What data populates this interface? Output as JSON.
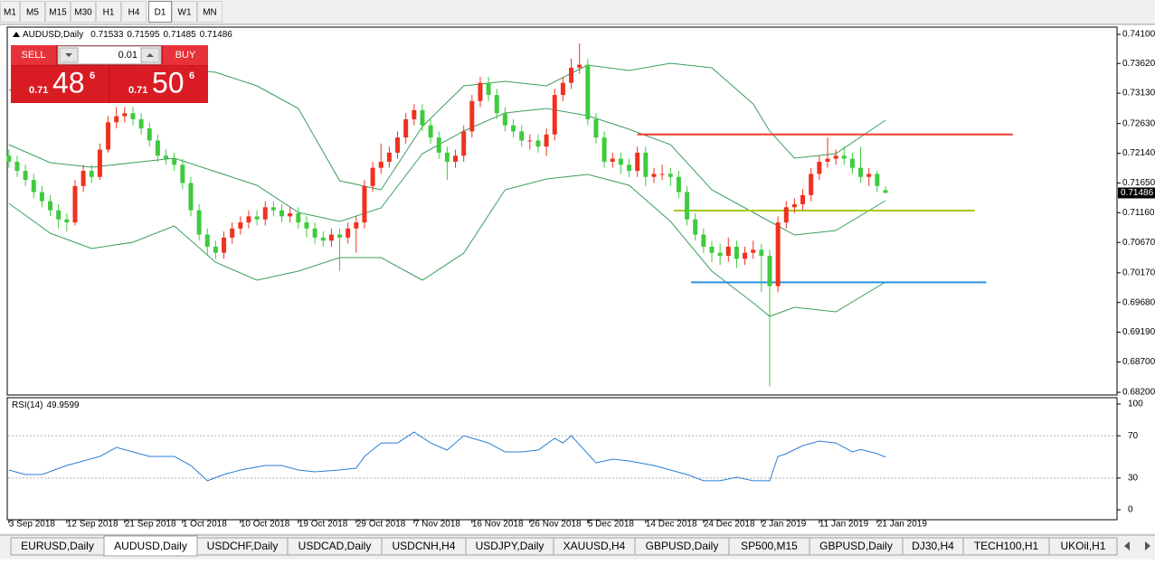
{
  "toolbar": {
    "timeframes": [
      "M1",
      "M5",
      "M15",
      "M30",
      "H1",
      "H4",
      "D1",
      "W1",
      "MN"
    ],
    "selected": 6
  },
  "trade_panel": {
    "sell": "SELL",
    "buy": "BUY",
    "lot": "0.01",
    "bid": {
      "big_figure": "0.71",
      "pips": "48",
      "fraction": "6"
    },
    "ask": {
      "big_figure": "0.71",
      "pips": "50",
      "fraction": "6"
    }
  },
  "chart_data": [
    {
      "type": "candlestick",
      "title": "AUDUSD,Daily",
      "up_color": "#f0311f",
      "down_color": "#3ecb3e",
      "xlim": [
        -0.2,
        134
      ],
      "ylim": [
        0.68156,
        0.74219
      ],
      "xticks": [
        {
          "value": 0,
          "label": "3 Sep 2018"
        },
        {
          "value": 7,
          "label": "12 Sep 2018"
        },
        {
          "value": 14,
          "label": "21 Sep 2018"
        },
        {
          "value": 21,
          "label": "1 Oct 2018"
        },
        {
          "value": 28,
          "label": "10 Oct 2018"
        },
        {
          "value": 35,
          "label": "19 Oct 2018"
        },
        {
          "value": 42,
          "label": "29 Oct 2018"
        },
        {
          "value": 49,
          "label": "7 Nov 2018"
        },
        {
          "value": 56,
          "label": "16 Nov 2018"
        },
        {
          "value": 63,
          "label": "26 Nov 2018"
        },
        {
          "value": 70,
          "label": "5 Dec 2018"
        },
        {
          "value": 77,
          "label": "14 Dec 2018"
        },
        {
          "value": 84,
          "label": "24 Dec 2018"
        },
        {
          "value": 91,
          "label": "2 Jan 2019"
        },
        {
          "value": 98,
          "label": "11 Jan 2019"
        },
        {
          "value": 105,
          "label": "21 Jan 2019"
        }
      ],
      "yticks": [
        {
          "value": 0.741,
          "label": "0.74100"
        },
        {
          "value": 0.7362,
          "label": "0.73620"
        },
        {
          "value": 0.7313,
          "label": "0.73130"
        },
        {
          "value": 0.7263,
          "label": "0.72630"
        },
        {
          "value": 0.7214,
          "label": "0.72140"
        },
        {
          "value": 0.7165,
          "label": "0.71650"
        },
        {
          "value": 0.7116,
          "label": "0.71160"
        },
        {
          "value": 0.7067,
          "label": "0.70670"
        },
        {
          "value": 0.7017,
          "label": "0.70170"
        },
        {
          "value": 0.6968,
          "label": "0.69680"
        },
        {
          "value": 0.6919,
          "label": "0.69190"
        },
        {
          "value": 0.687,
          "label": "0.68700"
        },
        {
          "value": 0.682,
          "label": "0.68200"
        }
      ],
      "open": [
        0.721,
        0.72,
        0.7185,
        0.717,
        0.715,
        0.7135,
        0.712,
        0.7105,
        0.71,
        0.716,
        0.7185,
        0.7175,
        0.722,
        0.7265,
        0.7275,
        0.728,
        0.727,
        0.7255,
        0.7235,
        0.721,
        0.7205,
        0.7195,
        0.7165,
        0.712,
        0.708,
        0.706,
        0.705,
        0.7075,
        0.709,
        0.71,
        0.711,
        0.7105,
        0.7125,
        0.712,
        0.711,
        0.7115,
        0.71,
        0.709,
        0.7075,
        0.707,
        0.708,
        0.7075,
        0.709,
        0.71,
        0.716,
        0.719,
        0.72,
        0.7215,
        0.724,
        0.727,
        0.7285,
        0.726,
        0.724,
        0.7215,
        0.72,
        0.721,
        0.725,
        0.73,
        0.733,
        0.731,
        0.728,
        0.726,
        0.725,
        0.7235,
        0.7235,
        0.7225,
        0.7245,
        0.731,
        0.733,
        0.7355,
        0.736,
        0.727,
        0.724,
        0.72,
        0.7205,
        0.7195,
        0.7185,
        0.7215,
        0.7175,
        0.718,
        0.718,
        0.7175,
        0.715,
        0.7105,
        0.708,
        0.706,
        0.705,
        0.7045,
        0.706,
        0.704,
        0.705,
        0.7055,
        0.7045,
        0.6995,
        0.71,
        0.7125,
        0.713,
        0.7145,
        0.718,
        0.72,
        0.7205,
        0.721,
        0.7205,
        0.719,
        0.7175,
        0.718,
        0.71533
      ],
      "high": [
        0.722,
        0.721,
        0.7195,
        0.718,
        0.716,
        0.7145,
        0.713,
        0.7115,
        0.717,
        0.7195,
        0.7195,
        0.723,
        0.7275,
        0.729,
        0.729,
        0.729,
        0.728,
        0.7265,
        0.7245,
        0.722,
        0.7215,
        0.7205,
        0.7175,
        0.713,
        0.709,
        0.707,
        0.7085,
        0.71,
        0.711,
        0.712,
        0.712,
        0.7135,
        0.7135,
        0.713,
        0.7125,
        0.7125,
        0.711,
        0.71,
        0.7085,
        0.709,
        0.709,
        0.71,
        0.711,
        0.717,
        0.72,
        0.723,
        0.7225,
        0.725,
        0.728,
        0.7295,
        0.7295,
        0.727,
        0.725,
        0.7225,
        0.722,
        0.726,
        0.731,
        0.734,
        0.734,
        0.732,
        0.729,
        0.727,
        0.726,
        0.7245,
        0.7245,
        0.7255,
        0.732,
        0.734,
        0.737,
        0.7395,
        0.737,
        0.728,
        0.725,
        0.7215,
        0.7215,
        0.7205,
        0.7225,
        0.7225,
        0.719,
        0.7195,
        0.719,
        0.7185,
        0.716,
        0.7115,
        0.709,
        0.707,
        0.7065,
        0.7075,
        0.707,
        0.706,
        0.707,
        0.7065,
        0.7055,
        0.711,
        0.7135,
        0.714,
        0.7155,
        0.719,
        0.721,
        0.724,
        0.722,
        0.7225,
        0.7215,
        0.7225,
        0.719,
        0.7185,
        0.71595
      ],
      "low": [
        0.719,
        0.7175,
        0.716,
        0.714,
        0.7125,
        0.711,
        0.709,
        0.7085,
        0.7095,
        0.715,
        0.7165,
        0.717,
        0.7215,
        0.7255,
        0.7265,
        0.726,
        0.7245,
        0.7225,
        0.72,
        0.7195,
        0.7185,
        0.7155,
        0.711,
        0.707,
        0.7045,
        0.704,
        0.704,
        0.7065,
        0.708,
        0.709,
        0.7095,
        0.7095,
        0.711,
        0.71,
        0.71,
        0.709,
        0.7075,
        0.7065,
        0.706,
        0.706,
        0.702,
        0.7065,
        0.705,
        0.709,
        0.715,
        0.718,
        0.719,
        0.7205,
        0.723,
        0.726,
        0.725,
        0.723,
        0.7205,
        0.717,
        0.719,
        0.72,
        0.724,
        0.729,
        0.73,
        0.727,
        0.725,
        0.724,
        0.7225,
        0.722,
        0.7215,
        0.721,
        0.7235,
        0.73,
        0.732,
        0.7345,
        0.726,
        0.723,
        0.719,
        0.719,
        0.718,
        0.7175,
        0.7175,
        0.716,
        0.7165,
        0.717,
        0.716,
        0.714,
        0.7095,
        0.707,
        0.705,
        0.7035,
        0.703,
        0.7035,
        0.7025,
        0.703,
        0.704,
        0.6985,
        0.683,
        0.6985,
        0.709,
        0.7115,
        0.712,
        0.7135,
        0.717,
        0.719,
        0.7195,
        0.7195,
        0.718,
        0.7165,
        0.716,
        0.715,
        0.71485
      ],
      "close": [
        0.72,
        0.7185,
        0.717,
        0.715,
        0.7135,
        0.712,
        0.7105,
        0.71,
        0.716,
        0.7185,
        0.7175,
        0.722,
        0.7265,
        0.7275,
        0.728,
        0.727,
        0.7255,
        0.7235,
        0.721,
        0.7205,
        0.7195,
        0.7165,
        0.712,
        0.708,
        0.706,
        0.705,
        0.7075,
        0.709,
        0.71,
        0.711,
        0.7105,
        0.7125,
        0.712,
        0.711,
        0.7115,
        0.71,
        0.709,
        0.7075,
        0.707,
        0.708,
        0.7075,
        0.709,
        0.71,
        0.716,
        0.719,
        0.72,
        0.7215,
        0.724,
        0.727,
        0.7285,
        0.726,
        0.724,
        0.7215,
        0.72,
        0.721,
        0.725,
        0.73,
        0.733,
        0.731,
        0.728,
        0.726,
        0.725,
        0.7235,
        0.7235,
        0.7225,
        0.7245,
        0.731,
        0.733,
        0.7355,
        0.736,
        0.727,
        0.724,
        0.72,
        0.7205,
        0.7195,
        0.7185,
        0.7215,
        0.7175,
        0.718,
        0.718,
        0.7175,
        0.715,
        0.7105,
        0.708,
        0.706,
        0.705,
        0.7045,
        0.706,
        0.704,
        0.705,
        0.7055,
        0.7045,
        0.6995,
        0.71,
        0.7125,
        0.713,
        0.7145,
        0.718,
        0.72,
        0.7205,
        0.721,
        0.7205,
        0.719,
        0.7175,
        0.718,
        0.716,
        0.71486
      ],
      "overlays": [
        {
          "color": "#3b9e5c",
          "x": [
            0,
            5,
            10,
            15,
            20,
            25,
            30,
            35,
            40,
            45,
            50,
            55,
            60,
            65,
            70,
            75,
            80,
            85,
            90,
            92,
            95,
            100,
            106
          ],
          "values": [
            0.73176,
            0.73325,
            0.734,
            0.73474,
            0.73549,
            0.73474,
            0.73251,
            0.72878,
            0.71686,
            0.71537,
            0.7258,
            0.73251,
            0.73325,
            0.73251,
            0.73593,
            0.73504,
            0.73623,
            0.73549,
            0.72953,
            0.72506,
            0.72059,
            0.72133,
            0.72685
          ]
        },
        {
          "color": "#3b9e5c",
          "x": [
            0,
            5,
            10,
            15,
            20,
            25,
            30,
            35,
            40,
            45,
            50,
            55,
            60,
            65,
            70,
            75,
            80,
            85,
            90,
            92,
            95,
            100,
            106
          ],
          "values": [
            0.72282,
            0.71984,
            0.7191,
            0.71984,
            0.72059,
            0.71835,
            0.71612,
            0.71165,
            0.71016,
            0.71239,
            0.72133,
            0.72506,
            0.72804,
            0.72878,
            0.72759,
            0.72536,
            0.72282,
            0.71537,
            0.71165,
            0.71016,
            0.70792,
            0.70867,
            0.71359
          ]
        },
        {
          "color": "#3b9e5c",
          "x": [
            0,
            5,
            10,
            15,
            20,
            25,
            30,
            35,
            40,
            45,
            50,
            55,
            60,
            65,
            70,
            75,
            80,
            85,
            90,
            92,
            95,
            100,
            106
          ],
          "values": [
            0.71314,
            0.70822,
            0.70569,
            0.70673,
            0.70941,
            0.70345,
            0.70048,
            0.70197,
            0.7042,
            0.7042,
            0.70048,
            0.70494,
            0.71537,
            0.71716,
            0.71791,
            0.71612,
            0.71016,
            0.70197,
            0.69675,
            0.69452,
            0.69601,
            0.69526,
            0.70018
          ]
        }
      ],
      "levels": [
        {
          "value": 0.7245,
          "color": "#f03a2a",
          "from": 76,
          "to": 121.4
        },
        {
          "value": 0.71195,
          "color": "#a8c81e",
          "from": 80.4,
          "to": 116.8
        },
        {
          "value": 0.70012,
          "color": "#2c8fe0",
          "from": 82.5,
          "to": 118.2
        }
      ]
    },
    {
      "type": "line",
      "title": "RSI(14)",
      "color": "#2a7fd4",
      "xlim": [
        -0.2,
        134
      ],
      "ylim": [
        -9.4,
        106
      ],
      "yticks": [
        0,
        30,
        70,
        100
      ],
      "levels": [
        30,
        70
      ],
      "x": [
        0,
        2,
        4,
        7,
        9,
        11,
        13,
        15,
        17,
        20,
        22,
        24,
        26,
        28,
        31,
        33,
        35,
        37,
        40,
        42,
        43,
        45,
        47,
        49,
        51,
        53,
        55,
        58,
        60,
        62,
        64,
        66,
        67,
        68,
        71,
        73,
        75,
        78,
        80,
        82,
        84,
        86,
        88,
        90,
        92,
        93,
        94,
        96,
        98,
        100,
        102,
        103,
        105,
        106
      ],
      "values": [
        37.6,
        33.3,
        33.3,
        41.9,
        46.2,
        50.4,
        59.0,
        54.7,
        50.4,
        50.4,
        41.9,
        27.4,
        33.3,
        37.6,
        41.9,
        41.9,
        37.6,
        35.9,
        37.6,
        39.3,
        50.4,
        63.2,
        63.2,
        73.5,
        63.2,
        56.4,
        70.1,
        63.2,
        54.7,
        54.7,
        56.4,
        67.5,
        63.2,
        70.1,
        44.4,
        47.9,
        46.2,
        41.9,
        37.6,
        33.3,
        27.4,
        27.4,
        30.8,
        27.4,
        27.4,
        50.4,
        53.0,
        60.7,
        65.0,
        63.2,
        54.7,
        57.0,
        53.0,
        49.9599
      ]
    }
  ],
  "tabs": {
    "items": [
      "EURUSD,Daily",
      "AUDUSD,Daily",
      "USDCHF,Daily",
      "USDCAD,Daily",
      "USDCNH,H4",
      "USDJPY,Daily",
      "XAUUSD,H4",
      "GBPUSD,Daily",
      "SP500,M15",
      "GBPUSD,Daily",
      "DJ30,H4",
      "TECH100,H1",
      "UKOil,H1"
    ],
    "selected": 1
  }
}
